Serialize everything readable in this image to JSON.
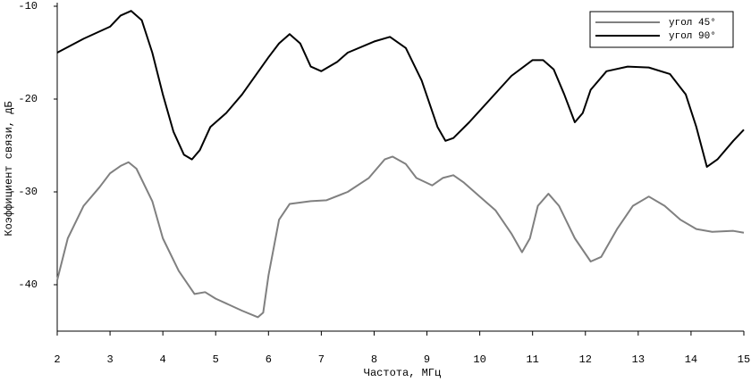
{
  "chart_data": {
    "type": "line",
    "xlabel": "Частота, МГц",
    "ylabel": "Коэффициент связи, дБ",
    "xlim": [
      2,
      15
    ],
    "ylim": [
      -45,
      -10
    ],
    "xticks": [
      2,
      3,
      4,
      5,
      6,
      7,
      8,
      9,
      10,
      11,
      12,
      13,
      14,
      15
    ],
    "yticks": [
      -10,
      -20,
      -30,
      -40
    ],
    "legend": "upper right",
    "grid": false,
    "series": [
      {
        "name": "угол 45°",
        "color": "#808080",
        "x": [
          2,
          2.2,
          2.5,
          2.8,
          3.0,
          3.2,
          3.35,
          3.5,
          3.8,
          4.0,
          4.3,
          4.6,
          4.8,
          5.0,
          5.5,
          5.8,
          5.9,
          6.0,
          6.2,
          6.4,
          6.8,
          7.1,
          7.5,
          7.9,
          8.2,
          8.35,
          8.6,
          8.8,
          9.1,
          9.3,
          9.5,
          9.7,
          10.0,
          10.3,
          10.6,
          10.8,
          10.95,
          11.1,
          11.3,
          11.5,
          11.8,
          12.1,
          12.3,
          12.6,
          12.9,
          13.2,
          13.5,
          13.8,
          14.1,
          14.4,
          14.8,
          15
        ],
        "values": [
          -39.5,
          -35,
          -31.5,
          -29.5,
          -28,
          -27.2,
          -26.8,
          -27.5,
          -31,
          -35,
          -38.5,
          -41,
          -40.8,
          -41.5,
          -42.8,
          -43.5,
          -43,
          -39,
          -33,
          -31.3,
          -31,
          -30.9,
          -30,
          -28.5,
          -26.5,
          -26.2,
          -27,
          -28.5,
          -29.3,
          -28.5,
          -28.2,
          -29,
          -30.5,
          -32,
          -34.5,
          -36.5,
          -35,
          -31.5,
          -30.2,
          -31.5,
          -35,
          -37.5,
          -37,
          -34,
          -31.5,
          -30.5,
          -31.5,
          -33,
          -34,
          -34.3,
          -34.2,
          -34.4
        ]
      },
      {
        "name": "угол 90°",
        "color": "#000000",
        "x": [
          2,
          2.5,
          3.0,
          3.2,
          3.4,
          3.6,
          3.8,
          4.0,
          4.2,
          4.4,
          4.55,
          4.7,
          4.9,
          5.2,
          5.5,
          6.0,
          6.2,
          6.4,
          6.6,
          6.8,
          7.0,
          7.3,
          7.5,
          8.0,
          8.3,
          8.6,
          8.9,
          9.2,
          9.35,
          9.5,
          9.8,
          10.2,
          10.6,
          11.0,
          11.2,
          11.4,
          11.6,
          11.8,
          11.95,
          12.1,
          12.4,
          12.8,
          13.2,
          13.6,
          13.9,
          14.1,
          14.3,
          14.5,
          14.8,
          15
        ],
        "values": [
          -15,
          -13.5,
          -12.2,
          -11,
          -10.5,
          -11.5,
          -15,
          -19.5,
          -23.5,
          -26,
          -26.5,
          -25.5,
          -23,
          -21.5,
          -19.5,
          -15.5,
          -14,
          -13,
          -14,
          -16.5,
          -17,
          -16,
          -15,
          -13.8,
          -13.3,
          -14.5,
          -18,
          -23,
          -24.5,
          -24.2,
          -22.5,
          -20,
          -17.5,
          -15.8,
          -15.8,
          -16.8,
          -19.5,
          -22.5,
          -21.5,
          -19,
          -17,
          -16.5,
          -16.6,
          -17.3,
          -19.5,
          -23,
          -27.3,
          -26.5,
          -24.5,
          -23.3
        ]
      }
    ]
  }
}
